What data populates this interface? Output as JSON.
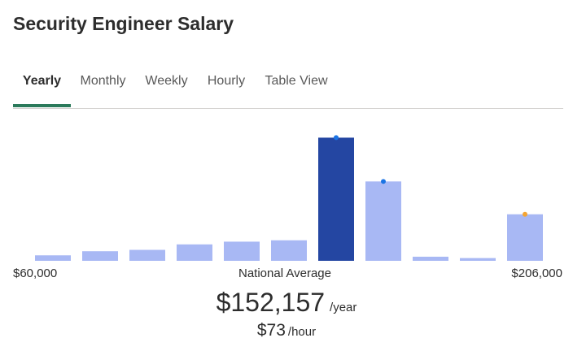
{
  "page": {
    "title": "Security Engineer Salary"
  },
  "tabs": [
    {
      "label": "Yearly",
      "active": true
    },
    {
      "label": "Monthly",
      "active": false
    },
    {
      "label": "Weekly",
      "active": false
    },
    {
      "label": "Hourly",
      "active": false
    },
    {
      "label": "Table View",
      "active": false
    }
  ],
  "colors": {
    "bar_default": "#a8b8f4",
    "bar_highlight": "#2446a2",
    "marker_blue": "#1b74e4",
    "marker_orange": "#f4a533",
    "tab_underline": "#2b7a5b"
  },
  "chart_data": {
    "type": "bar",
    "title": "",
    "xlabel": "",
    "ylabel": "",
    "values": [
      4,
      7,
      8,
      12,
      14,
      15,
      90,
      58,
      3,
      2,
      34
    ],
    "highlight_index": 6,
    "markers": [
      {
        "bar": 6,
        "color": "blue"
      },
      {
        "bar": 7,
        "color": "blue"
      },
      {
        "bar": 10,
        "color": "orange"
      }
    ],
    "ylim": [
      0,
      95
    ],
    "axis_min_label": "$60,000",
    "axis_mid_label": "National Average",
    "axis_max_label": "$206,000"
  },
  "summary": {
    "average_value": "$152,157",
    "average_unit": "/year",
    "hourly_value": "$73",
    "hourly_unit": "/hour"
  }
}
